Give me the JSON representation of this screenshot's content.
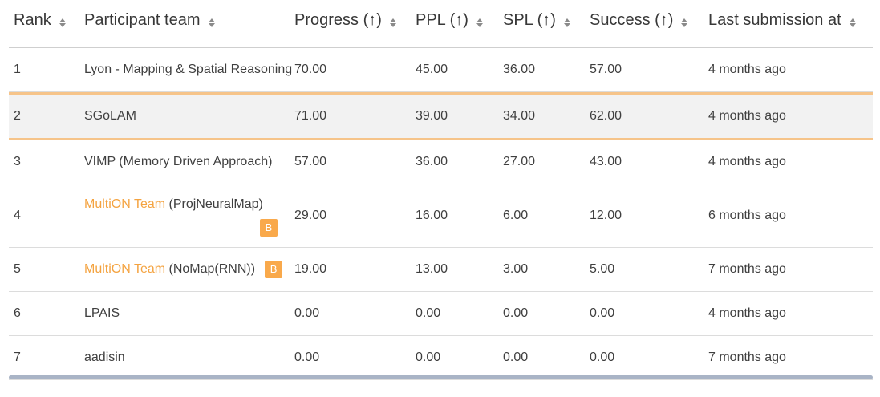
{
  "columns": {
    "rank": "Rank",
    "team": "Participant team",
    "progress": "Progress (↑)",
    "ppl": "PPL (↑)",
    "spl": "SPL (↑)",
    "success": "Success (↑)",
    "last": "Last submission at"
  },
  "rows": [
    {
      "rank": "1",
      "team_prefix": "",
      "team": "Lyon - Mapping & Spatial Reasoning",
      "badge": "",
      "progress": "70.00",
      "ppl": "45.00",
      "spl": "36.00",
      "success": "57.00",
      "last": "4 months ago"
    },
    {
      "rank": "2",
      "team_prefix": "",
      "team": "SGoLAM",
      "badge": "",
      "progress": "71.00",
      "ppl": "39.00",
      "spl": "34.00",
      "success": "62.00",
      "last": "4 months ago"
    },
    {
      "rank": "3",
      "team_prefix": "",
      "team": "VIMP (Memory Driven Approach)",
      "badge": "",
      "progress": "57.00",
      "ppl": "36.00",
      "spl": "27.00",
      "success": "43.00",
      "last": "4 months ago"
    },
    {
      "rank": "4",
      "team_prefix": "MultiON Team",
      "team": " (ProjNeuralMap)",
      "badge": "B",
      "progress": "29.00",
      "ppl": "16.00",
      "spl": "6.00",
      "success": "12.00",
      "last": "6 months ago"
    },
    {
      "rank": "5",
      "team_prefix": "MultiON Team",
      "team": " (NoMap(RNN))",
      "badge": "B",
      "progress": "19.00",
      "ppl": "13.00",
      "spl": "3.00",
      "success": "5.00",
      "last": "7 months ago"
    },
    {
      "rank": "6",
      "team_prefix": "",
      "team": "LPAIS",
      "badge": "",
      "progress": "0.00",
      "ppl": "0.00",
      "spl": "0.00",
      "success": "0.00",
      "last": "4 months ago"
    },
    {
      "rank": "7",
      "team_prefix": "",
      "team": "aadisin",
      "badge": "",
      "progress": "0.00",
      "ppl": "0.00",
      "spl": "0.00",
      "success": "0.00",
      "last": "7 months ago"
    }
  ],
  "colors": {
    "highlight_border": "#f6c48a",
    "highlight_bg": "#f2f2f2",
    "link": "#f4a340",
    "badge": "#f9a94b",
    "scrollbar": "#a9b4c6"
  },
  "icons": {
    "sort": "sort-updown-icon",
    "badge": "baseline-badge"
  }
}
